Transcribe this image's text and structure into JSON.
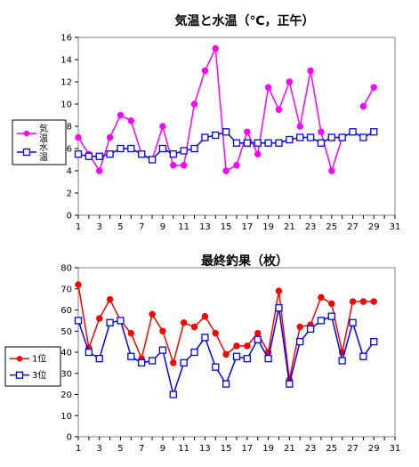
{
  "chart_data": [
    {
      "type": "line",
      "title": "気温と水温（℃，正午）",
      "xlabel": "",
      "ylabel": "",
      "xlim": [
        1,
        31
      ],
      "ylim": [
        0,
        16
      ],
      "x_ticks": [
        1,
        3,
        5,
        7,
        9,
        11,
        13,
        15,
        17,
        19,
        21,
        23,
        25,
        27,
        29,
        31
      ],
      "y_ticks": [
        0,
        2,
        4,
        6,
        8,
        10,
        12,
        14,
        16
      ],
      "grid": false,
      "legend_position": "left",
      "series": [
        {
          "name": "気温",
          "color": "#ff00ff",
          "marker": "circle",
          "points": [
            {
              "x": 1,
              "y": 7
            },
            {
              "x": 2,
              "y": 5.5
            },
            {
              "x": 3,
              "y": 4
            },
            {
              "x": 4,
              "y": 7
            },
            {
              "x": 5,
              "y": 9
            },
            {
              "x": 6,
              "y": 8.5
            },
            {
              "x": 7,
              "y": 5.5
            },
            {
              "x": 8,
              "y": 5
            },
            {
              "x": 9,
              "y": 8
            },
            {
              "x": 10,
              "y": 4.5
            },
            {
              "x": 11,
              "y": 4.5
            },
            {
              "x": 12,
              "y": 10
            },
            {
              "x": 13,
              "y": 13
            },
            {
              "x": 14,
              "y": 15
            },
            {
              "x": 15,
              "y": 4
            },
            {
              "x": 16,
              "y": 4.5
            },
            {
              "x": 17,
              "y": 7.5
            },
            {
              "x": 18,
              "y": 5.5
            },
            {
              "x": 19,
              "y": 11.5
            },
            {
              "x": 20,
              "y": 9.5
            },
            {
              "x": 21,
              "y": 12
            },
            {
              "x": 22,
              "y": 8
            },
            {
              "x": 23,
              "y": 13
            },
            {
              "x": 24,
              "y": 7.5
            },
            {
              "x": 25,
              "y": 4
            },
            {
              "x": 26,
              "y": 7
            },
            {
              "x": 28,
              "y": 9.8
            },
            {
              "x": 29,
              "y": 11.5
            }
          ]
        },
        {
          "name": "水温",
          "color": "#0000ff",
          "marker": "square",
          "points": [
            {
              "x": 1,
              "y": 5.5
            },
            {
              "x": 2,
              "y": 5.3
            },
            {
              "x": 3,
              "y": 5.3
            },
            {
              "x": 4,
              "y": 5.5
            },
            {
              "x": 5,
              "y": 6
            },
            {
              "x": 6,
              "y": 6
            },
            {
              "x": 7,
              "y": 5.5
            },
            {
              "x": 8,
              "y": 5
            },
            {
              "x": 9,
              "y": 6
            },
            {
              "x": 10,
              "y": 5.5
            },
            {
              "x": 11,
              "y": 5.8
            },
            {
              "x": 12,
              "y": 6
            },
            {
              "x": 13,
              "y": 7
            },
            {
              "x": 14,
              "y": 7.2
            },
            {
              "x": 15,
              "y": 7.5
            },
            {
              "x": 16,
              "y": 6.5
            },
            {
              "x": 17,
              "y": 6.5
            },
            {
              "x": 18,
              "y": 6.5
            },
            {
              "x": 19,
              "y": 6.5
            },
            {
              "x": 20,
              "y": 6.5
            },
            {
              "x": 21,
              "y": 6.8
            },
            {
              "x": 22,
              "y": 7
            },
            {
              "x": 23,
              "y": 7
            },
            {
              "x": 24,
              "y": 6.5
            },
            {
              "x": 25,
              "y": 7
            },
            {
              "x": 26,
              "y": 7
            },
            {
              "x": 27,
              "y": 7.5
            },
            {
              "x": 28,
              "y": 7
            },
            {
              "x": 29,
              "y": 7.5
            }
          ]
        }
      ]
    },
    {
      "type": "line",
      "title": "最終釣果（枚）",
      "xlabel": "",
      "ylabel": "",
      "xlim": [
        1,
        31
      ],
      "ylim": [
        0,
        80
      ],
      "x_ticks": [
        1,
        3,
        5,
        7,
        9,
        11,
        13,
        15,
        17,
        19,
        21,
        23,
        25,
        27,
        29,
        31
      ],
      "y_ticks": [
        0,
        10,
        20,
        30,
        40,
        50,
        60,
        70,
        80
      ],
      "grid": false,
      "legend_position": "left",
      "series": [
        {
          "name": "1位",
          "color": "#ff0000",
          "marker": "circle",
          "points": [
            {
              "x": 1,
              "y": 72
            },
            {
              "x": 2,
              "y": 42
            },
            {
              "x": 3,
              "y": 56
            },
            {
              "x": 4,
              "y": 65
            },
            {
              "x": 5,
              "y": 55
            },
            {
              "x": 6,
              "y": 49
            },
            {
              "x": 7,
              "y": 37
            },
            {
              "x": 8,
              "y": 58
            },
            {
              "x": 9,
              "y": 50
            },
            {
              "x": 10,
              "y": 35
            },
            {
              "x": 11,
              "y": 54
            },
            {
              "x": 12,
              "y": 52
            },
            {
              "x": 13,
              "y": 57
            },
            {
              "x": 14,
              "y": 49
            },
            {
              "x": 15,
              "y": 39
            },
            {
              "x": 16,
              "y": 43
            },
            {
              "x": 17,
              "y": 43
            },
            {
              "x": 18,
              "y": 49
            },
            {
              "x": 19,
              "y": 40
            },
            {
              "x": 20,
              "y": 69
            },
            {
              "x": 21,
              "y": 27
            },
            {
              "x": 22,
              "y": 52
            },
            {
              "x": 23,
              "y": 53
            },
            {
              "x": 24,
              "y": 66
            },
            {
              "x": 25,
              "y": 63
            },
            {
              "x": 26,
              "y": 40
            },
            {
              "x": 27,
              "y": 64
            },
            {
              "x": 28,
              "y": 64
            },
            {
              "x": 29,
              "y": 64
            }
          ]
        },
        {
          "name": "3位",
          "color": "#0000ff",
          "marker": "square",
          "points": [
            {
              "x": 1,
              "y": 55
            },
            {
              "x": 2,
              "y": 40
            },
            {
              "x": 3,
              "y": 37
            },
            {
              "x": 4,
              "y": 54
            },
            {
              "x": 5,
              "y": 55
            },
            {
              "x": 6,
              "y": 38
            },
            {
              "x": 7,
              "y": 35
            },
            {
              "x": 8,
              "y": 36
            },
            {
              "x": 9,
              "y": 41
            },
            {
              "x": 10,
              "y": 20
            },
            {
              "x": 11,
              "y": 35
            },
            {
              "x": 12,
              "y": 40
            },
            {
              "x": 13,
              "y": 47
            },
            {
              "x": 14,
              "y": 33
            },
            {
              "x": 15,
              "y": 25
            },
            {
              "x": 16,
              "y": 38
            },
            {
              "x": 17,
              "y": 37
            },
            {
              "x": 18,
              "y": 46
            },
            {
              "x": 19,
              "y": 37
            },
            {
              "x": 20,
              "y": 61
            },
            {
              "x": 21,
              "y": 25
            },
            {
              "x": 22,
              "y": 45
            },
            {
              "x": 23,
              "y": 51
            },
            {
              "x": 24,
              "y": 55
            },
            {
              "x": 25,
              "y": 57
            },
            {
              "x": 26,
              "y": 36
            },
            {
              "x": 27,
              "y": 54
            },
            {
              "x": 28,
              "y": 38
            },
            {
              "x": 29,
              "y": 45
            }
          ]
        }
      ]
    }
  ]
}
